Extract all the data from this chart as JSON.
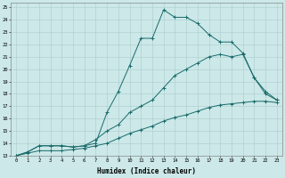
{
  "xlabel": "Humidex (Indice chaleur)",
  "background_color": "#cce8e8",
  "grid_color": "#aacccc",
  "line_color": "#1a6b6b",
  "xlim": [
    -0.5,
    23.5
  ],
  "ylim": [
    13,
    25.4
  ],
  "xticks": [
    0,
    1,
    2,
    3,
    4,
    5,
    6,
    7,
    8,
    9,
    10,
    11,
    12,
    13,
    14,
    15,
    16,
    17,
    18,
    19,
    20,
    21,
    22,
    23
  ],
  "yticks": [
    13,
    14,
    15,
    16,
    17,
    18,
    19,
    20,
    21,
    22,
    23,
    24,
    25
  ],
  "curve1_x": [
    0,
    1,
    2,
    3,
    4,
    5,
    6,
    7,
    8,
    9,
    10,
    11,
    12,
    13,
    14,
    15,
    16,
    17,
    18,
    19,
    20,
    21,
    22,
    23
  ],
  "curve1_y": [
    13,
    13.3,
    13.8,
    13.8,
    13.8,
    13.7,
    13.8,
    14.0,
    16.5,
    18.2,
    20.3,
    22.5,
    22.5,
    24.8,
    24.2,
    24.2,
    23.7,
    22.8,
    22.2,
    22.2,
    21.3,
    19.3,
    18.0,
    17.5
  ],
  "curve2_x": [
    0,
    1,
    2,
    3,
    4,
    5,
    6,
    7,
    8,
    9,
    10,
    11,
    12,
    13,
    14,
    15,
    16,
    17,
    18,
    19,
    20,
    21,
    22,
    23
  ],
  "curve2_y": [
    13,
    13.3,
    13.8,
    13.8,
    13.8,
    13.7,
    13.8,
    14.3,
    15.0,
    15.5,
    16.5,
    17.0,
    17.5,
    18.5,
    19.5,
    20.0,
    20.5,
    21.0,
    21.2,
    21.0,
    21.2,
    19.3,
    18.2,
    17.5
  ],
  "curve3_x": [
    0,
    1,
    2,
    3,
    4,
    5,
    6,
    7,
    8,
    9,
    10,
    11,
    12,
    13,
    14,
    15,
    16,
    17,
    18,
    19,
    20,
    21,
    22,
    23
  ],
  "curve3_y": [
    13,
    13.2,
    13.4,
    13.4,
    13.4,
    13.5,
    13.6,
    13.8,
    14.0,
    14.4,
    14.8,
    15.1,
    15.4,
    15.8,
    16.1,
    16.3,
    16.6,
    16.9,
    17.1,
    17.2,
    17.3,
    17.4,
    17.4,
    17.3
  ]
}
